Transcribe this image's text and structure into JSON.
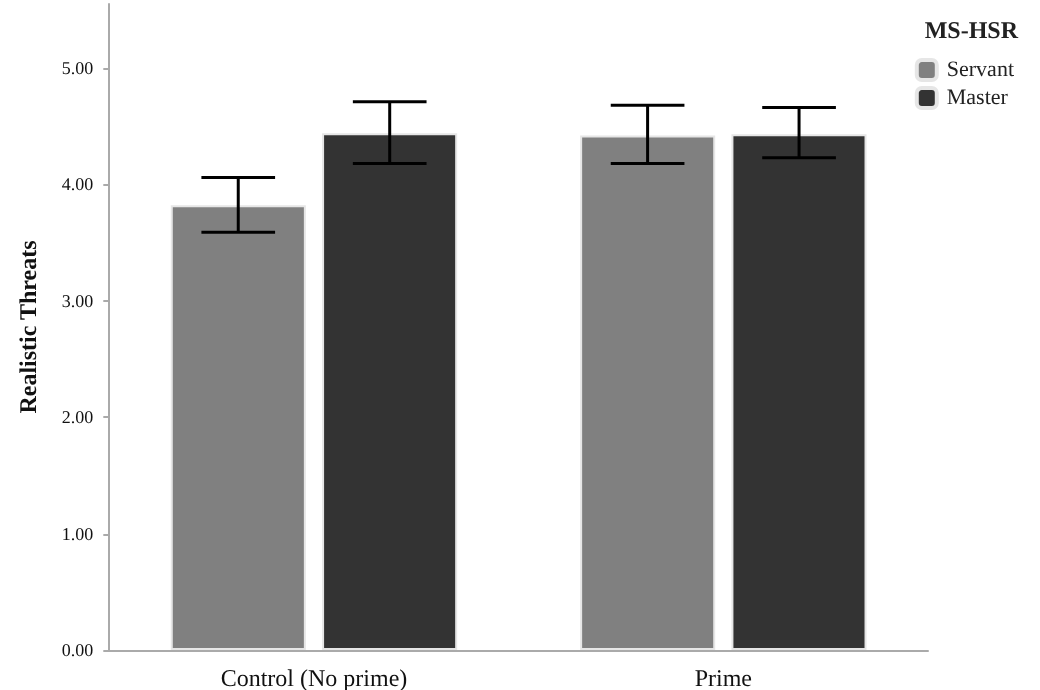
{
  "chart_data": {
    "type": "bar",
    "ylabel": "Realistic Threats",
    "legend_title": "MS-HSR",
    "categories": [
      "Control (No prime)",
      "Prime"
    ],
    "series": [
      {
        "name": "Servant",
        "color": "#808080",
        "values": [
          3.82,
          4.42
        ],
        "errors": [
          [
            3.59,
            4.06
          ],
          [
            4.18,
            4.68
          ]
        ]
      },
      {
        "name": "Master",
        "color": "#333333",
        "values": [
          4.44,
          4.43
        ],
        "errors": [
          [
            4.18,
            4.71
          ],
          [
            4.23,
            4.66
          ]
        ]
      }
    ],
    "ylim": [
      0,
      5.55
    ],
    "yticks": [
      {
        "value": 0,
        "label": "0.00"
      },
      {
        "value": 1,
        "label": "1.00"
      },
      {
        "value": 2,
        "label": "2.00"
      },
      {
        "value": 3,
        "label": "3.00"
      },
      {
        "value": 4,
        "label": "4.00"
      },
      {
        "value": 5,
        "label": "5.00"
      }
    ],
    "grid": false,
    "legend": "top right"
  }
}
